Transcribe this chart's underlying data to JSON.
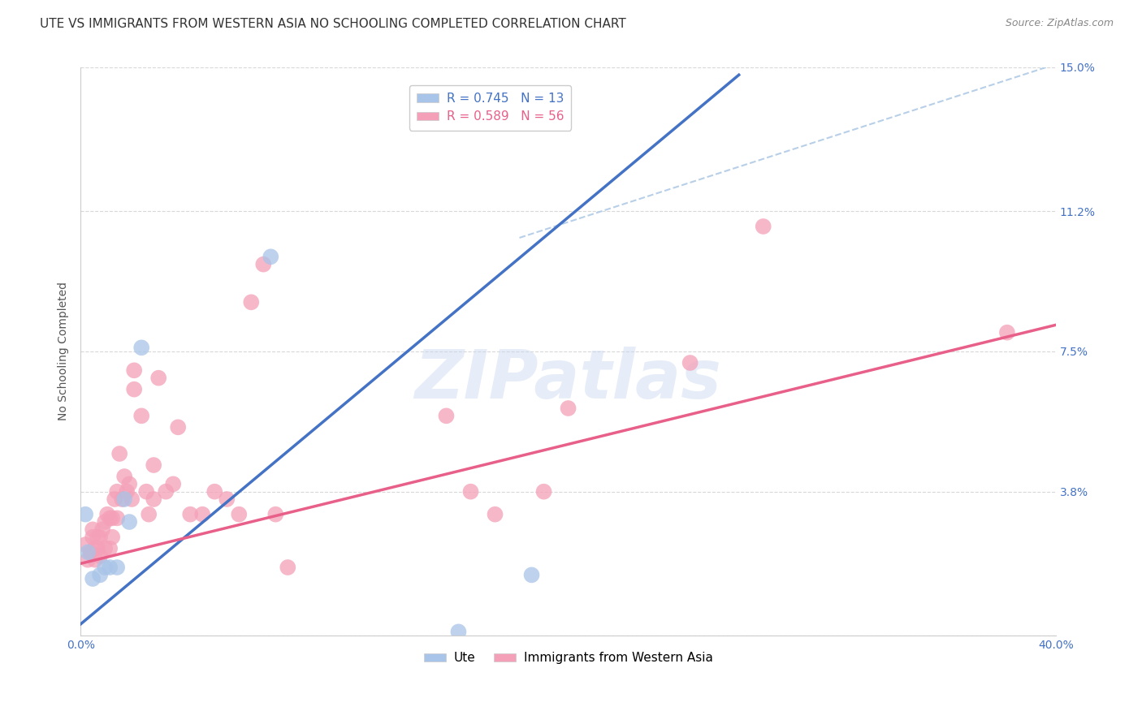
{
  "title": "UTE VS IMMIGRANTS FROM WESTERN ASIA NO SCHOOLING COMPLETED CORRELATION CHART",
  "source": "Source: ZipAtlas.com",
  "ylabel": "No Schooling Completed",
  "xlim": [
    0,
    0.4
  ],
  "ylim": [
    0,
    0.15
  ],
  "xticks": [
    0.0,
    0.1,
    0.2,
    0.3,
    0.4
  ],
  "xticklabels": [
    "0.0%",
    "",
    "",
    "",
    "40.0%"
  ],
  "yticks": [
    0.0,
    0.038,
    0.075,
    0.112,
    0.15
  ],
  "yticklabels": [
    "",
    "3.8%",
    "7.5%",
    "11.2%",
    "15.0%"
  ],
  "legend_label1": "R = 0.745   N = 13",
  "legend_label2": "R = 0.589   N = 56",
  "legend_label_bottom1": "Ute",
  "legend_label_bottom2": "Immigrants from Western Asia",
  "blue_color": "#a8c4e8",
  "pink_color": "#f4a0b8",
  "blue_line_color": "#4472c4",
  "pink_line_color": "#e8608a",
  "dashed_line_color": "#b8cfe8",
  "watermark": "ZIPatlas",
  "blue_line": [
    0.0,
    0.003,
    0.27,
    0.148
  ],
  "pink_line": [
    0.0,
    0.019,
    0.4,
    0.082
  ],
  "dashed_line": [
    0.18,
    0.105,
    0.42,
    0.155
  ],
  "blue_points": [
    [
      0.002,
      0.032
    ],
    [
      0.003,
      0.022
    ],
    [
      0.005,
      0.015
    ],
    [
      0.008,
      0.016
    ],
    [
      0.01,
      0.018
    ],
    [
      0.012,
      0.018
    ],
    [
      0.015,
      0.018
    ],
    [
      0.018,
      0.036
    ],
    [
      0.02,
      0.03
    ],
    [
      0.025,
      0.076
    ],
    [
      0.078,
      0.1
    ],
    [
      0.155,
      0.001
    ],
    [
      0.185,
      0.016
    ]
  ],
  "pink_points": [
    [
      0.002,
      0.024
    ],
    [
      0.003,
      0.02
    ],
    [
      0.004,
      0.022
    ],
    [
      0.005,
      0.026
    ],
    [
      0.005,
      0.028
    ],
    [
      0.006,
      0.023
    ],
    [
      0.006,
      0.02
    ],
    [
      0.007,
      0.023
    ],
    [
      0.007,
      0.026
    ],
    [
      0.008,
      0.021
    ],
    [
      0.008,
      0.026
    ],
    [
      0.009,
      0.028
    ],
    [
      0.01,
      0.023
    ],
    [
      0.01,
      0.03
    ],
    [
      0.011,
      0.032
    ],
    [
      0.012,
      0.023
    ],
    [
      0.012,
      0.031
    ],
    [
      0.013,
      0.026
    ],
    [
      0.013,
      0.031
    ],
    [
      0.014,
      0.036
    ],
    [
      0.015,
      0.031
    ],
    [
      0.015,
      0.038
    ],
    [
      0.016,
      0.048
    ],
    [
      0.017,
      0.036
    ],
    [
      0.018,
      0.042
    ],
    [
      0.019,
      0.038
    ],
    [
      0.02,
      0.04
    ],
    [
      0.021,
      0.036
    ],
    [
      0.022,
      0.065
    ],
    [
      0.022,
      0.07
    ],
    [
      0.025,
      0.058
    ],
    [
      0.027,
      0.038
    ],
    [
      0.028,
      0.032
    ],
    [
      0.03,
      0.036
    ],
    [
      0.03,
      0.045
    ],
    [
      0.032,
      0.068
    ],
    [
      0.035,
      0.038
    ],
    [
      0.038,
      0.04
    ],
    [
      0.04,
      0.055
    ],
    [
      0.045,
      0.032
    ],
    [
      0.05,
      0.032
    ],
    [
      0.055,
      0.038
    ],
    [
      0.06,
      0.036
    ],
    [
      0.065,
      0.032
    ],
    [
      0.07,
      0.088
    ],
    [
      0.075,
      0.098
    ],
    [
      0.08,
      0.032
    ],
    [
      0.085,
      0.018
    ],
    [
      0.15,
      0.058
    ],
    [
      0.16,
      0.038
    ],
    [
      0.17,
      0.032
    ],
    [
      0.19,
      0.038
    ],
    [
      0.2,
      0.06
    ],
    [
      0.25,
      0.072
    ],
    [
      0.28,
      0.108
    ],
    [
      0.38,
      0.08
    ]
  ],
  "grid_color": "#d8d8d8",
  "background_color": "#ffffff",
  "title_fontsize": 11,
  "axis_fontsize": 10,
  "tick_fontsize": 10,
  "source_fontsize": 9
}
